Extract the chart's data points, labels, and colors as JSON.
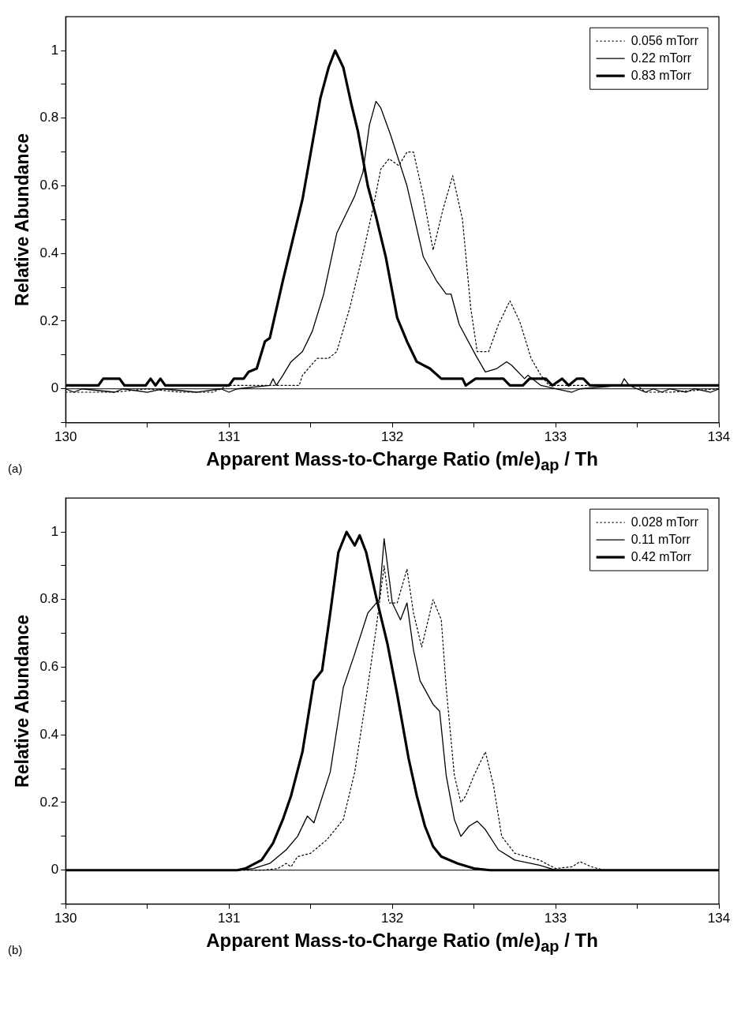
{
  "chart_data": [
    {
      "type": "line",
      "xlabel": "Apparent Mass-to-Charge Ratio  (m/e)$_{ap}$ / Th",
      "ylabel": "Relative Abundance",
      "annotations": [
        "(a)"
      ],
      "xlim": [
        130,
        134
      ],
      "ylim": [
        -0.1,
        1.1
      ],
      "xticks": [
        130,
        {
          "value": 130.5,
          "label": null
        },
        131,
        {
          "value": 131.5,
          "label": null
        },
        132,
        {
          "value": 132.5,
          "label": null
        },
        133,
        {
          "value": 133.5,
          "label": null
        },
        134
      ],
      "yticks": [
        {
          "value": -0.1,
          "label": null
        },
        0,
        {
          "value": 0.1,
          "label": null
        },
        0.2,
        {
          "value": 0.3,
          "label": null
        },
        0.4,
        {
          "value": 0.5,
          "label": null
        },
        0.6,
        {
          "value": 0.7,
          "label": null
        },
        0.8,
        {
          "value": 0.9,
          "label": null
        },
        1
      ],
      "grid": false,
      "legend": "top right",
      "ref_lines": [
        {
          "axis": "y",
          "value": 0,
          "color": "#000000"
        }
      ],
      "series": [
        {
          "name": "0.056 mTorr",
          "color": "#000000",
          "line_style": "dotted",
          "x": [
            130,
            130.3,
            130.5,
            130.7,
            130.9,
            131,
            131.43,
            131.45,
            131.54,
            131.61,
            131.66,
            131.74,
            131.83,
            131.88,
            131.93,
            131.98,
            132.04,
            132.09,
            132.13,
            132.19,
            132.25,
            132.31,
            132.37,
            132.43,
            132.48,
            132.52,
            132.59,
            132.65,
            132.72,
            132.78,
            132.85,
            132.91,
            132.96,
            133.5,
            133.55,
            133.7,
            134
          ],
          "values": [
            -0.01,
            -0.01,
            0,
            -0.01,
            -0.01,
            0.01,
            0.01,
            0.04,
            0.09,
            0.09,
            0.11,
            0.24,
            0.42,
            0.53,
            0.65,
            0.68,
            0.66,
            0.7,
            0.7,
            0.57,
            0.41,
            0.53,
            0.63,
            0.5,
            0.24,
            0.11,
            0.11,
            0.19,
            0.26,
            0.2,
            0.09,
            0.04,
            0.01,
            0.01,
            -0.01,
            -0.01,
            0
          ]
        },
        {
          "name": "0.22 mTorr",
          "color": "#000000",
          "line_style": "solid",
          "x": [
            130,
            130.05,
            130.1,
            130.3,
            130.35,
            130.5,
            130.6,
            130.8,
            130.95,
            131,
            131.05,
            131.25,
            131.27,
            131.29,
            131.33,
            131.38,
            131.45,
            131.51,
            131.58,
            131.66,
            131.77,
            131.82,
            131.86,
            131.9,
            131.93,
            131.99,
            132.09,
            132.19,
            132.27,
            132.33,
            132.36,
            132.41,
            132.51,
            132.57,
            132.64,
            132.67,
            132.7,
            132.73,
            132.81,
            132.83,
            132.91,
            133,
            133.1,
            133.15,
            133.4,
            133.42,
            133.45,
            133.5,
            133.55,
            133.6,
            133.65,
            133.7,
            133.8,
            133.85,
            133.95,
            134
          ],
          "values": [
            0,
            -0.01,
            0,
            -0.01,
            0,
            -0.01,
            0,
            -0.01,
            0,
            -0.01,
            0,
            0.01,
            0.03,
            0.01,
            0.04,
            0.08,
            0.11,
            0.17,
            0.28,
            0.46,
            0.57,
            0.64,
            0.78,
            0.85,
            0.83,
            0.75,
            0.6,
            0.39,
            0.32,
            0.28,
            0.28,
            0.19,
            0.1,
            0.05,
            0.06,
            0.07,
            0.08,
            0.07,
            0.03,
            0.04,
            0.01,
            0,
            -0.01,
            0,
            0.01,
            0.03,
            0.01,
            0,
            -0.01,
            0,
            -0.01,
            0,
            -0.01,
            0,
            -0.01,
            0
          ]
        },
        {
          "name": "0.83 mTorr",
          "color": "#000000",
          "line_style": "solid",
          "x": [
            130,
            130.2,
            130.23,
            130.33,
            130.36,
            130.49,
            130.52,
            130.55,
            130.58,
            130.61,
            131,
            131.03,
            131.09,
            131.12,
            131.17,
            131.22,
            131.25,
            131.33,
            131.45,
            131.56,
            131.61,
            131.65,
            131.7,
            131.75,
            131.79,
            131.85,
            131.9,
            131.96,
            132.03,
            132.09,
            132.15,
            132.23,
            132.3,
            132.43,
            132.45,
            132.51,
            132.59,
            132.68,
            132.72,
            132.8,
            132.84,
            132.94,
            132.98,
            133.04,
            133.08,
            133.13,
            133.17,
            133.21,
            134
          ],
          "values": [
            0.01,
            0.01,
            0.03,
            0.03,
            0.01,
            0.01,
            0.03,
            0.01,
            0.03,
            0.01,
            0.01,
            0.03,
            0.03,
            0.05,
            0.06,
            0.14,
            0.15,
            0.32,
            0.56,
            0.86,
            0.95,
            1,
            0.95,
            0.84,
            0.76,
            0.6,
            0.51,
            0.39,
            0.21,
            0.14,
            0.08,
            0.06,
            0.03,
            0.03,
            0.01,
            0.03,
            0.03,
            0.03,
            0.01,
            0.01,
            0.03,
            0.03,
            0.01,
            0.03,
            0.01,
            0.03,
            0.03,
            0.01,
            0.01
          ]
        }
      ]
    },
    {
      "type": "line",
      "xlabel": "Apparent Mass-to-Charge Ratio  (m/e)$_{ap}$ / Th",
      "ylabel": "Relative Abundance",
      "annotations": [
        "(b)"
      ],
      "xlim": [
        130,
        134
      ],
      "ylim": [
        -0.1,
        1.1
      ],
      "xticks": [
        130,
        {
          "value": 130.5,
          "label": null
        },
        131,
        {
          "value": 131.5,
          "label": null
        },
        132,
        {
          "value": 132.5,
          "label": null
        },
        133,
        {
          "value": 133.5,
          "label": null
        },
        134
      ],
      "yticks": [
        {
          "value": -0.1,
          "label": null
        },
        0,
        {
          "value": 0.1,
          "label": null
        },
        0.2,
        {
          "value": 0.3,
          "label": null
        },
        0.4,
        {
          "value": 0.5,
          "label": null
        },
        0.6,
        {
          "value": 0.7,
          "label": null
        },
        0.8,
        {
          "value": 0.9,
          "label": null
        },
        1
      ],
      "grid": false,
      "legend": "top right",
      "ref_lines": [
        {
          "axis": "y",
          "value": 0,
          "color": "#000000"
        }
      ],
      "series": [
        {
          "name": "0.028 mTorr",
          "color": "#000000",
          "line_style": "dotted",
          "x": [
            130,
            131.2,
            131.3,
            131.35,
            131.38,
            131.42,
            131.5,
            131.6,
            131.7,
            131.77,
            131.84,
            131.9,
            131.95,
            131.98,
            132.03,
            132.09,
            132.13,
            132.18,
            132.25,
            132.3,
            132.33,
            132.38,
            132.42,
            132.45,
            132.5,
            132.57,
            132.62,
            132.67,
            132.75,
            132.9,
            133,
            133.1,
            133.15,
            133.22,
            133.3,
            134
          ],
          "values": [
            0,
            0,
            0.005,
            0.02,
            0.01,
            0.04,
            0.05,
            0.09,
            0.15,
            0.29,
            0.51,
            0.71,
            0.9,
            0.79,
            0.79,
            0.89,
            0.76,
            0.66,
            0.8,
            0.74,
            0.54,
            0.28,
            0.2,
            0.22,
            0.28,
            0.35,
            0.25,
            0.1,
            0.05,
            0.03,
            0.005,
            0.01,
            0.025,
            0.01,
            0,
            0
          ]
        },
        {
          "name": "0.11 mTorr",
          "color": "#000000",
          "line_style": "solid",
          "x": [
            130,
            131.05,
            131.15,
            131.25,
            131.35,
            131.42,
            131.48,
            131.52,
            131.56,
            131.62,
            131.7,
            131.77,
            131.85,
            131.92,
            131.95,
            132,
            132.05,
            132.09,
            132.13,
            132.17,
            132.25,
            132.29,
            132.33,
            132.38,
            132.42,
            132.47,
            132.52,
            132.57,
            132.65,
            132.75,
            132.9,
            133,
            134
          ],
          "values": [
            0,
            0,
            0.005,
            0.02,
            0.06,
            0.1,
            0.16,
            0.14,
            0.2,
            0.29,
            0.54,
            0.64,
            0.76,
            0.8,
            0.98,
            0.79,
            0.74,
            0.79,
            0.65,
            0.56,
            0.49,
            0.47,
            0.28,
            0.15,
            0.1,
            0.13,
            0.145,
            0.12,
            0.06,
            0.03,
            0.015,
            0,
            0
          ]
        },
        {
          "name": "0.42 mTorr",
          "color": "#000000",
          "line_style": "solid",
          "x": [
            130,
            131.05,
            131.1,
            131.2,
            131.27,
            131.33,
            131.38,
            131.45,
            131.52,
            131.57,
            131.62,
            131.67,
            131.72,
            131.77,
            131.8,
            131.84,
            131.9,
            131.97,
            132.03,
            132.1,
            132.15,
            132.2,
            132.25,
            132.3,
            132.4,
            132.5,
            132.6,
            134
          ],
          "values": [
            0,
            0,
            0.005,
            0.03,
            0.08,
            0.15,
            0.22,
            0.35,
            0.56,
            0.59,
            0.76,
            0.94,
            1,
            0.96,
            0.99,
            0.94,
            0.81,
            0.67,
            0.52,
            0.33,
            0.22,
            0.13,
            0.07,
            0.04,
            0.02,
            0.005,
            0,
            0
          ]
        }
      ]
    }
  ]
}
